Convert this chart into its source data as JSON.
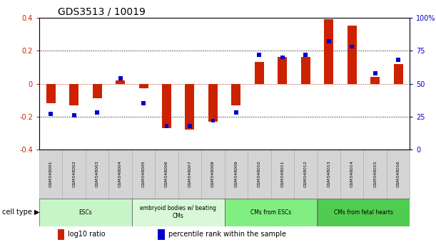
{
  "title": "GDS3513 / 10019",
  "samples": [
    "GSM348001",
    "GSM348002",
    "GSM348003",
    "GSM348004",
    "GSM348005",
    "GSM348006",
    "GSM348007",
    "GSM348008",
    "GSM348009",
    "GSM348010",
    "GSM348011",
    "GSM348012",
    "GSM348013",
    "GSM348014",
    "GSM348015",
    "GSM348016"
  ],
  "log10_ratio": [
    -0.12,
    -0.13,
    -0.09,
    0.02,
    -0.03,
    -0.27,
    -0.28,
    -0.23,
    -0.13,
    0.13,
    0.16,
    0.16,
    0.39,
    0.35,
    0.04,
    0.12
  ],
  "percentile_rank": [
    27,
    26,
    28,
    54,
    35,
    18,
    18,
    22,
    28,
    72,
    70,
    72,
    82,
    78,
    58,
    68
  ],
  "cell_type_groups": [
    {
      "label": "ESCs",
      "start": 0,
      "end": 3,
      "color": "#c8f5c8"
    },
    {
      "label": "embryoid bodies w/ beating\nCMs",
      "start": 4,
      "end": 7,
      "color": "#d8f8d8"
    },
    {
      "label": "CMs from ESCs",
      "start": 8,
      "end": 11,
      "color": "#80ee80"
    },
    {
      "label": "CMs from fetal hearts",
      "start": 12,
      "end": 15,
      "color": "#50cc50"
    }
  ],
  "ylim_left": [
    -0.4,
    0.4
  ],
  "ylim_right": [
    0,
    100
  ],
  "yticks_left": [
    -0.4,
    -0.2,
    0.0,
    0.2,
    0.4
  ],
  "yticks_right": [
    0,
    25,
    50,
    75,
    100
  ],
  "bar_color_red": "#cc2200",
  "bar_color_blue": "#0000cc",
  "zero_line_color": "#cc2200",
  "background_color": "#ffffff",
  "title_fontsize": 10,
  "tick_fontsize": 7,
  "bar_width": 0.4,
  "legend_red_label": "log10 ratio",
  "legend_blue_label": "percentile rank within the sample"
}
